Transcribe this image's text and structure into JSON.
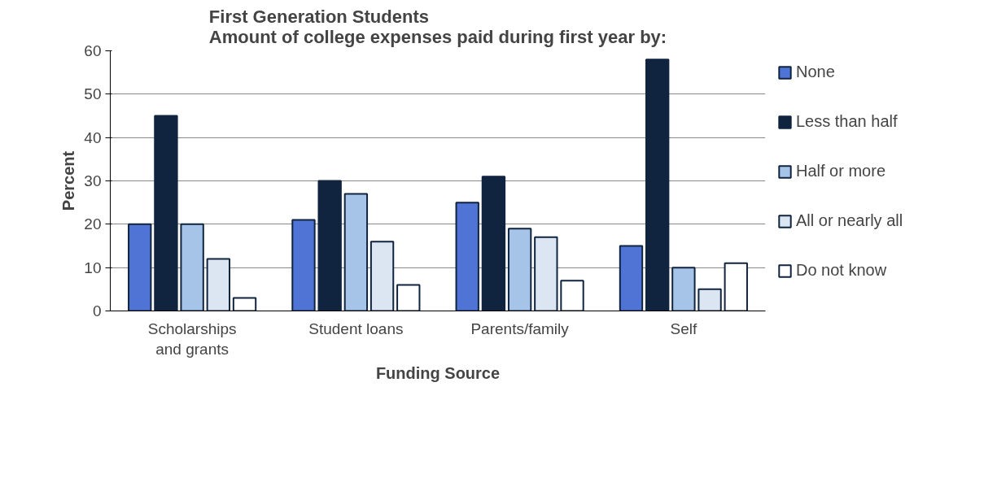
{
  "chart_data": {
    "type": "bar",
    "title": "First Generation Students\nAmount of college expenses paid during first year by:",
    "xlabel": "Funding Source",
    "ylabel": "Percent",
    "categories": [
      "Scholarships and grants",
      "Student loans",
      "Parents/family",
      "Self"
    ],
    "series": [
      {
        "name": "None",
        "color": "#4f74d6",
        "values": [
          20,
          21,
          25,
          15
        ]
      },
      {
        "name": "Less than half",
        "color": "#10243f",
        "values": [
          45,
          30,
          31,
          58
        ]
      },
      {
        "name": "Half or more",
        "color": "#a6c4e8",
        "values": [
          20,
          27,
          19,
          10
        ]
      },
      {
        "name": "All or nearly all",
        "color": "#dce6f2",
        "values": [
          12,
          16,
          17,
          5
        ]
      },
      {
        "name": "Do not know",
        "color": "#ffffff",
        "values": [
          3,
          6,
          7,
          11
        ]
      }
    ],
    "ylim": [
      0,
      60
    ],
    "yticks": [
      0,
      10,
      20,
      30,
      40,
      50,
      60
    ],
    "grid": "y",
    "legend": "right"
  }
}
